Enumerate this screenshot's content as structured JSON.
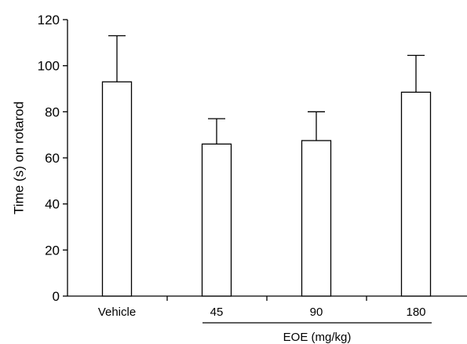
{
  "chart_data": {
    "type": "bar",
    "title": "",
    "xlabel": "",
    "ylabel": "Time (s) on rotarod",
    "categories": [
      "Vehicle",
      "45",
      "90",
      "180"
    ],
    "values": [
      93,
      66,
      67.5,
      88.5
    ],
    "errors": [
      20,
      11,
      12.5,
      16
    ],
    "ylim": [
      0,
      120
    ],
    "yticks": [
      0,
      20,
      40,
      60,
      80,
      100,
      120
    ],
    "group_label": "EOE (mg/kg)",
    "grid": false,
    "bar_color": "#ffffff",
    "edge_color": "#000000"
  }
}
